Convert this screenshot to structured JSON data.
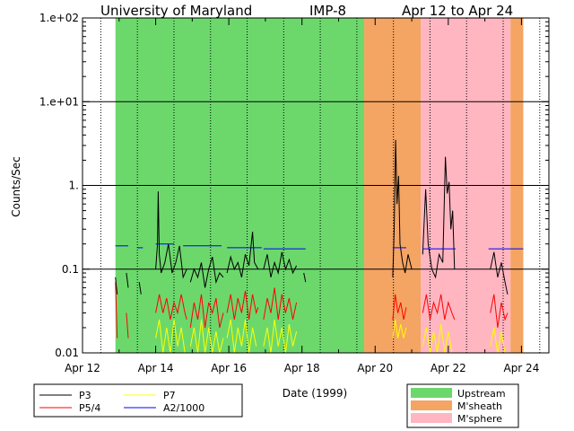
{
  "chart_data": {
    "type": "line",
    "title_left": "University of Maryland",
    "title_mid": "IMP-8",
    "title_right": "Apr 12 to Apr 24",
    "xlabel": "Date (1999)",
    "ylabel": "Counts/Sec",
    "yscale": "log",
    "ylim": [
      0.01,
      100
    ],
    "xlim": [
      12,
      24.75
    ],
    "y_ticks": [
      {
        "value": 0.01,
        "label": "0.01"
      },
      {
        "value": 0.1,
        "label": "0.1"
      },
      {
        "value": 1,
        "label": "1."
      },
      {
        "value": 10,
        "label": "1.e+01"
      },
      {
        "value": 100,
        "label": "1.e+02"
      }
    ],
    "x_ticks": [
      {
        "value": 12,
        "label": "Apr 12"
      },
      {
        "value": 14,
        "label": "Apr 14"
      },
      {
        "value": 16,
        "label": "Apr 16"
      },
      {
        "value": 18,
        "label": "Apr 18"
      },
      {
        "value": 20,
        "label": "Apr 20"
      },
      {
        "value": 22,
        "label": "Apr 22"
      },
      {
        "value": 24,
        "label": "Apr 24"
      }
    ],
    "regions": [
      {
        "name": "Upstream",
        "from": 12.9,
        "to": 19.7,
        "color": "#6cd86c"
      },
      {
        "name": "M'sheath",
        "from": 19.7,
        "to": 21.25,
        "color": "#f4a463"
      },
      {
        "name": "M'sphere",
        "from": 21.25,
        "to": 23.7,
        "color": "#ffb6c1"
      },
      {
        "name": "M'sheath",
        "from": 23.7,
        "to": 24.05,
        "color": "#f4a463"
      }
    ],
    "series": [
      {
        "name": "P3",
        "color": "#000000",
        "segments": [
          [
            [
              12.9,
              0.08
            ],
            [
              12.95,
              0.05
            ]
          ],
          [
            [
              13.2,
              0.09
            ],
            [
              13.25,
              0.06
            ]
          ],
          [
            [
              13.55,
              0.07
            ],
            [
              13.6,
              0.05
            ]
          ],
          [
            [
              14.0,
              0.1
            ],
            [
              14.05,
              0.2
            ],
            [
              14.07,
              0.85
            ],
            [
              14.1,
              0.15
            ],
            [
              14.15,
              0.09
            ],
            [
              14.25,
              0.12
            ],
            [
              14.35,
              0.2
            ],
            [
              14.45,
              0.09
            ],
            [
              14.55,
              0.12
            ],
            [
              14.65,
              0.19
            ],
            [
              14.75,
              0.08
            ],
            [
              14.85,
              0.1
            ]
          ],
          [
            [
              14.95,
              0.07
            ],
            [
              15.05,
              0.1
            ],
            [
              15.15,
              0.08
            ],
            [
              15.25,
              0.12
            ],
            [
              15.35,
              0.06
            ],
            [
              15.45,
              0.1
            ],
            [
              15.55,
              0.14
            ],
            [
              15.65,
              0.07
            ],
            [
              15.75,
              0.09
            ],
            [
              15.85,
              0.08
            ]
          ],
          [
            [
              15.95,
              0.09
            ],
            [
              16.05,
              0.14
            ],
            [
              16.15,
              0.1
            ],
            [
              16.25,
              0.12
            ],
            [
              16.35,
              0.08
            ],
            [
              16.45,
              0.15
            ],
            [
              16.55,
              0.11
            ],
            [
              16.65,
              0.28
            ],
            [
              16.7,
              0.12
            ],
            [
              16.8,
              0.1
            ]
          ],
          [
            [
              16.95,
              0.1
            ],
            [
              17.05,
              0.15
            ],
            [
              17.15,
              0.08
            ],
            [
              17.25,
              0.12
            ],
            [
              17.35,
              0.09
            ],
            [
              17.45,
              0.16
            ],
            [
              17.55,
              0.1
            ],
            [
              17.65,
              0.13
            ],
            [
              17.75,
              0.09
            ],
            [
              17.85,
              0.11
            ]
          ],
          [
            [
              18.05,
              0.09
            ],
            [
              18.1,
              0.07
            ]
          ],
          [
            [
              20.48,
              0.08
            ],
            [
              20.52,
              0.3
            ],
            [
              20.56,
              3.5
            ],
            [
              20.6,
              0.6
            ],
            [
              20.64,
              1.3
            ],
            [
              20.68,
              0.2
            ],
            [
              20.75,
              0.12
            ],
            [
              20.82,
              0.09
            ],
            [
              20.9,
              0.15
            ],
            [
              21.0,
              0.1
            ]
          ],
          [
            [
              21.3,
              0.15
            ],
            [
              21.38,
              0.9
            ],
            [
              21.45,
              0.2
            ],
            [
              21.55,
              0.1
            ],
            [
              21.65,
              0.08
            ],
            [
              21.75,
              0.15
            ],
            [
              21.85,
              0.12
            ],
            [
              21.92,
              2.2
            ],
            [
              21.97,
              0.8
            ],
            [
              22.02,
              1.1
            ],
            [
              22.07,
              0.3
            ],
            [
              22.12,
              0.5
            ],
            [
              22.17,
              0.1
            ]
          ],
          [
            [
              23.15,
              0.1
            ],
            [
              23.25,
              0.16
            ],
            [
              23.35,
              0.08
            ],
            [
              23.45,
              0.12
            ],
            [
              23.55,
              0.07
            ],
            [
              23.62,
              0.05
            ]
          ]
        ]
      },
      {
        "name": "P5/4",
        "color": "#ff0000",
        "segments": [
          [
            [
              12.9,
              0.07
            ],
            [
              12.95,
              0.015
            ]
          ],
          [
            [
              13.2,
              0.03
            ],
            [
              13.25,
              0.015
            ]
          ],
          [
            [
              14.0,
              0.03
            ],
            [
              14.1,
              0.05
            ],
            [
              14.2,
              0.03
            ],
            [
              14.3,
              0.045
            ],
            [
              14.4,
              0.025
            ],
            [
              14.5,
              0.04
            ],
            [
              14.6,
              0.03
            ],
            [
              14.7,
              0.05
            ],
            [
              14.8,
              0.03
            ],
            [
              14.85,
              0.025
            ]
          ],
          [
            [
              14.95,
              0.02
            ],
            [
              15.05,
              0.04
            ],
            [
              15.15,
              0.025
            ],
            [
              15.25,
              0.05
            ],
            [
              15.35,
              0.02
            ],
            [
              15.45,
              0.04
            ],
            [
              15.55,
              0.03
            ],
            [
              15.65,
              0.045
            ],
            [
              15.75,
              0.02
            ],
            [
              15.85,
              0.03
            ]
          ],
          [
            [
              15.95,
              0.03
            ],
            [
              16.05,
              0.05
            ],
            [
              16.15,
              0.025
            ],
            [
              16.25,
              0.045
            ],
            [
              16.35,
              0.03
            ],
            [
              16.45,
              0.055
            ],
            [
              16.55,
              0.025
            ],
            [
              16.65,
              0.05
            ],
            [
              16.75,
              0.03
            ],
            [
              16.8,
              0.035
            ]
          ],
          [
            [
              16.95,
              0.025
            ],
            [
              17.05,
              0.045
            ],
            [
              17.15,
              0.03
            ],
            [
              17.25,
              0.06
            ],
            [
              17.35,
              0.025
            ],
            [
              17.45,
              0.05
            ],
            [
              17.55,
              0.03
            ],
            [
              17.65,
              0.045
            ],
            [
              17.75,
              0.025
            ],
            [
              17.85,
              0.04
            ]
          ],
          [
            [
              20.48,
              0.025
            ],
            [
              20.55,
              0.05
            ],
            [
              20.62,
              0.03
            ],
            [
              20.7,
              0.04
            ],
            [
              20.78,
              0.025
            ],
            [
              20.85,
              0.035
            ]
          ],
          [
            [
              21.3,
              0.03
            ],
            [
              21.4,
              0.05
            ],
            [
              21.5,
              0.025
            ],
            [
              21.6,
              0.04
            ],
            [
              21.7,
              0.03
            ],
            [
              21.8,
              0.05
            ],
            [
              21.9,
              0.025
            ],
            [
              22.0,
              0.04
            ],
            [
              22.1,
              0.03
            ],
            [
              22.17,
              0.025
            ]
          ],
          [
            [
              23.15,
              0.03
            ],
            [
              23.25,
              0.05
            ],
            [
              23.35,
              0.02
            ],
            [
              23.45,
              0.04
            ],
            [
              23.55,
              0.025
            ],
            [
              23.62,
              0.03
            ]
          ]
        ]
      },
      {
        "name": "P7",
        "color": "#ffff00",
        "segments": [
          [
            [
              14.0,
              0.015
            ],
            [
              14.1,
              0.025
            ],
            [
              14.2,
              0.01
            ],
            [
              14.3,
              0.02
            ],
            [
              14.4,
              0.01
            ],
            [
              14.5,
              0.025
            ],
            [
              14.6,
              0.012
            ],
            [
              14.7,
              0.02
            ],
            [
              14.8,
              0.01
            ]
          ],
          [
            [
              14.95,
              0.012
            ],
            [
              15.05,
              0.02
            ],
            [
              15.15,
              0.01
            ],
            [
              15.25,
              0.025
            ],
            [
              15.35,
              0.01
            ],
            [
              15.45,
              0.02
            ],
            [
              15.55,
              0.01
            ],
            [
              15.65,
              0.018
            ],
            [
              15.75,
              0.01
            ],
            [
              15.85,
              0.015
            ]
          ],
          [
            [
              15.95,
              0.015
            ],
            [
              16.05,
              0.025
            ],
            [
              16.15,
              0.01
            ],
            [
              16.25,
              0.02
            ],
            [
              16.35,
              0.012
            ],
            [
              16.45,
              0.025
            ],
            [
              16.55,
              0.01
            ],
            [
              16.65,
              0.02
            ],
            [
              16.75,
              0.012
            ]
          ],
          [
            [
              16.95,
              0.012
            ],
            [
              17.05,
              0.02
            ],
            [
              17.15,
              0.01
            ],
            [
              17.25,
              0.025
            ],
            [
              17.35,
              0.012
            ],
            [
              17.45,
              0.02
            ],
            [
              17.55,
              0.01
            ],
            [
              17.65,
              0.022
            ],
            [
              17.75,
              0.012
            ],
            [
              17.85,
              0.018
            ]
          ],
          [
            [
              20.48,
              0.015
            ],
            [
              20.55,
              0.025
            ],
            [
              20.62,
              0.015
            ],
            [
              20.7,
              0.022
            ],
            [
              20.78,
              0.015
            ],
            [
              20.85,
              0.02
            ]
          ],
          [
            [
              21.3,
              0.012
            ],
            [
              21.4,
              0.02
            ],
            [
              21.5,
              0.01
            ],
            [
              21.6,
              0.018
            ],
            [
              21.7,
              0.01
            ],
            [
              21.8,
              0.022
            ],
            [
              21.9,
              0.01
            ],
            [
              22.0,
              0.018
            ],
            [
              22.1,
              0.01
            ]
          ],
          [
            [
              23.15,
              0.012
            ],
            [
              23.25,
              0.02
            ],
            [
              23.35,
              0.01
            ],
            [
              23.45,
              0.018
            ],
            [
              23.55,
              0.01
            ]
          ]
        ]
      },
      {
        "name": "A2/1000",
        "color": "#0000ff",
        "segments": [
          [
            [
              12.9,
              0.19
            ],
            [
              13.25,
              0.19
            ]
          ],
          [
            [
              13.5,
              0.18
            ],
            [
              13.65,
              0.18
            ]
          ],
          [
            [
              14.0,
              0.2
            ],
            [
              14.5,
              0.2
            ]
          ],
          [
            [
              14.75,
              0.19
            ],
            [
              15.8,
              0.19
            ]
          ],
          [
            [
              15.95,
              0.18
            ],
            [
              16.9,
              0.18
            ]
          ],
          [
            [
              16.95,
              0.175
            ],
            [
              18.1,
              0.175
            ]
          ],
          [
            [
              20.48,
              0.18
            ],
            [
              20.85,
              0.18
            ]
          ],
          [
            [
              21.3,
              0.175
            ],
            [
              22.2,
              0.175
            ]
          ],
          [
            [
              23.1,
              0.175
            ],
            [
              24.05,
              0.175
            ]
          ]
        ]
      }
    ],
    "legend_series": [
      {
        "label": "P3",
        "color": "#000000"
      },
      {
        "label": "P7",
        "color": "#ffff00"
      },
      {
        "label": "P5/4",
        "color": "#ff0000"
      },
      {
        "label": "A2/1000",
        "color": "#0000ff"
      }
    ],
    "legend_regions": [
      {
        "label": "Upstream",
        "color": "#6cd86c"
      },
      {
        "label": "M'sheath",
        "color": "#f4a463"
      },
      {
        "label": "M'sphere",
        "color": "#ffb6c1"
      }
    ]
  }
}
